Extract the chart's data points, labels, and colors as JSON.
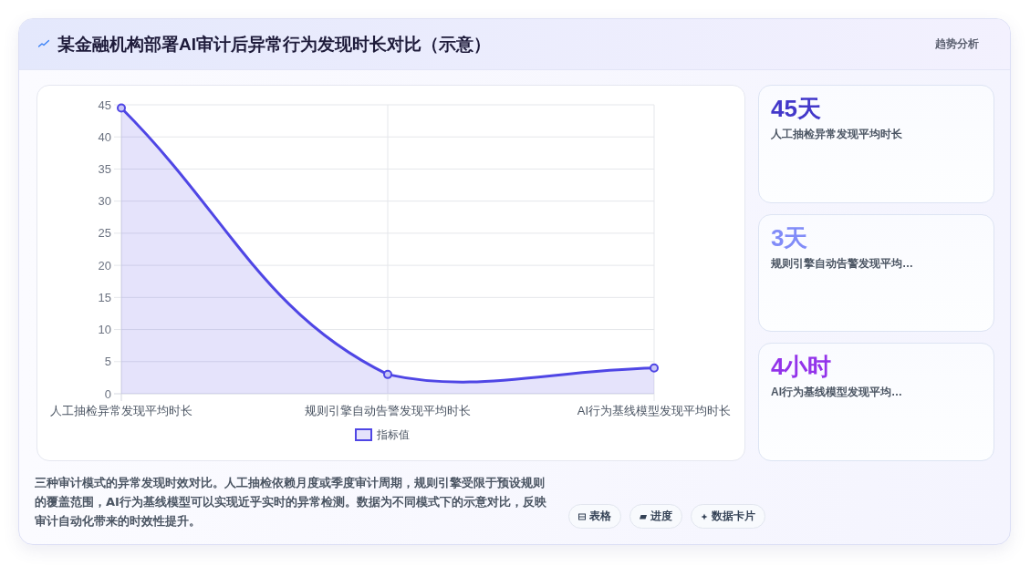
{
  "chart_data": [
    {
      "type": "area",
      "title": "某金融机构部署AI审计后异常行为发现时长对比（示意）",
      "categories": [
        "人工抽检异常发现平均时长",
        "规则引擎自动告警发现平均时长",
        "AI行为基线模型发现平均时长"
      ],
      "series": [
        {
          "name": "指标值",
          "color": "#4f46e5",
          "values": [
            44.5,
            3,
            4
          ]
        }
      ],
      "ylim": [
        0,
        45
      ],
      "yticks": [
        0,
        5,
        10,
        15,
        20,
        25,
        30,
        35,
        40,
        45
      ],
      "grid": true,
      "legend": "bottom",
      "marker": "circle",
      "line_style": "solid",
      "annotations": [
        "三种审计模式的异常发现时效对比。人工抽检依赖月度或季度审计周期，规则引擎受限于预设规则的覆盖范围，AI行为基线模型可以实现近乎实时的异常检测。数据为不同模式下的示意对比，反映审计自动化带来的时效性提升。",
        "表格",
        "进度",
        "数据卡片"
      ]
    },
    {
      "type": "other",
      "title": "趋势分析",
      "annotations": [
        "45天",
        "人工抽检异常发现平均时长",
        "3天",
        "规则引擎自动告警发现平均…",
        "4小时",
        "AI行为基线模型发现平均…"
      ]
    }
  ]
}
